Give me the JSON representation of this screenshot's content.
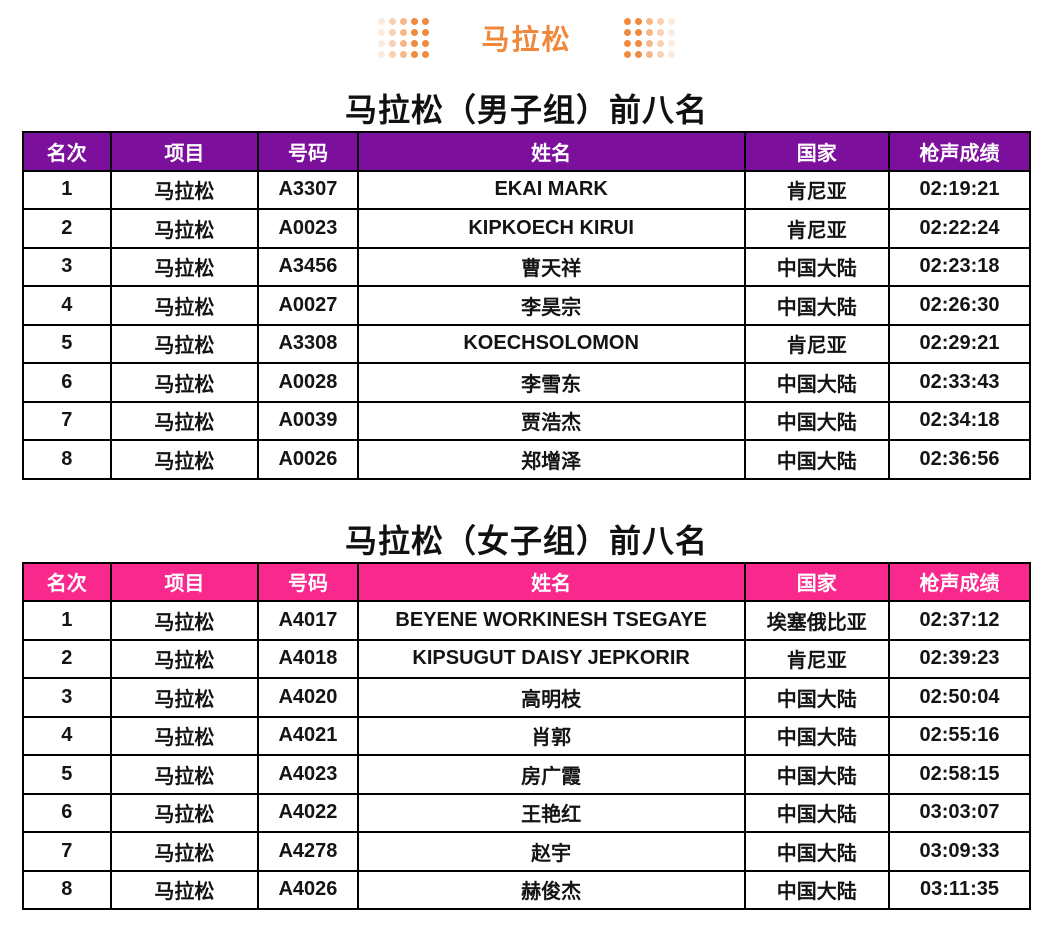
{
  "brand": {
    "title": "马拉松"
  },
  "colors": {
    "accent_orange": "#F0883C",
    "dot_orange": "#F08A3E",
    "mens_header": "#7D0F9D",
    "womens_header": "#F8288C",
    "border": "#000000"
  },
  "tables": [
    {
      "id": "men",
      "title": "马拉松（男子组）前八名",
      "header_color": "#7D0F9D",
      "columns": [
        "名次",
        "项目",
        "号码",
        "姓名",
        "国家",
        "枪声成绩"
      ],
      "rows": [
        [
          "1",
          "马拉松",
          "A3307",
          "EKAI MARK",
          "肯尼亚",
          "02:19:21"
        ],
        [
          "2",
          "马拉松",
          "A0023",
          "KIPKOECH KIRUI",
          "肯尼亚",
          "02:22:24"
        ],
        [
          "3",
          "马拉松",
          "A3456",
          "曹天祥",
          "中国大陆",
          "02:23:18"
        ],
        [
          "4",
          "马拉松",
          "A0027",
          "李昊宗",
          "中国大陆",
          "02:26:30"
        ],
        [
          "5",
          "马拉松",
          "A3308",
          "KOECHSOLOMON",
          "肯尼亚",
          "02:29:21"
        ],
        [
          "6",
          "马拉松",
          "A0028",
          "李雪东",
          "中国大陆",
          "02:33:43"
        ],
        [
          "7",
          "马拉松",
          "A0039",
          "贾浩杰",
          "中国大陆",
          "02:34:18"
        ],
        [
          "8",
          "马拉松",
          "A0026",
          "郑增泽",
          "中国大陆",
          "02:36:56"
        ]
      ]
    },
    {
      "id": "women",
      "title": "马拉松（女子组）前八名",
      "header_color": "#F8288C",
      "columns": [
        "名次",
        "项目",
        "号码",
        "姓名",
        "国家",
        "枪声成绩"
      ],
      "rows": [
        [
          "1",
          "马拉松",
          "A4017",
          "BEYENE WORKINESH TSEGAYE",
          "埃塞俄比亚",
          "02:37:12"
        ],
        [
          "2",
          "马拉松",
          "A4018",
          "KIPSUGUT DAISY JEPKORIR",
          "肯尼亚",
          "02:39:23"
        ],
        [
          "3",
          "马拉松",
          "A4020",
          "高明枝",
          "中国大陆",
          "02:50:04"
        ],
        [
          "4",
          "马拉松",
          "A4021",
          "肖郭",
          "中国大陆",
          "02:55:16"
        ],
        [
          "5",
          "马拉松",
          "A4023",
          "房广霞",
          "中国大陆",
          "02:58:15"
        ],
        [
          "6",
          "马拉松",
          "A4022",
          "王艳红",
          "中国大陆",
          "03:03:07"
        ],
        [
          "7",
          "马拉松",
          "A4278",
          "赵宇",
          "中国大陆",
          "03:09:33"
        ],
        [
          "8",
          "马拉松",
          "A4026",
          "赫俊杰",
          "中国大陆",
          "03:11:35"
        ]
      ]
    }
  ]
}
